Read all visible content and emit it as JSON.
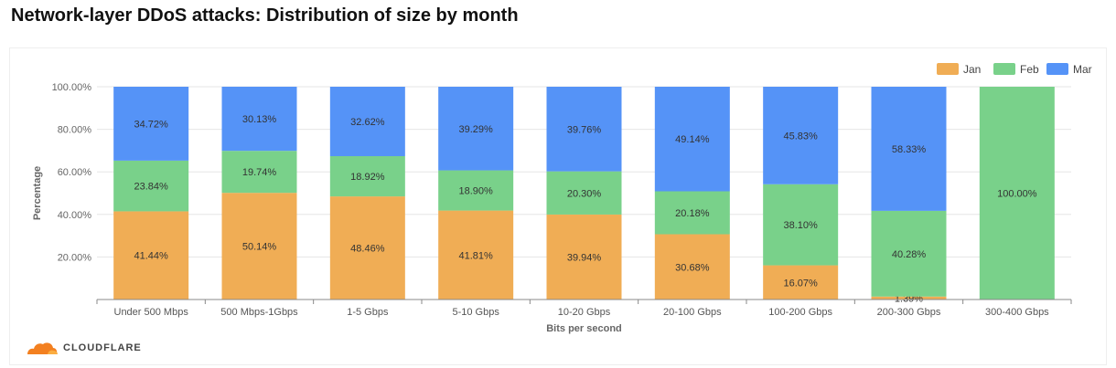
{
  "page": {
    "title": "Network-layer DDoS attacks: Distribution of size by month"
  },
  "brand": {
    "name": "CLOUDFLARE",
    "color": "#f38020"
  },
  "chart_data": {
    "type": "bar",
    "stacked": true,
    "title": "Network-layer DDoS attacks: Distribution of size by month",
    "xlabel": "Bits per second",
    "ylabel": "Percentage",
    "ylim": [
      0,
      100
    ],
    "yticks": [
      20,
      40,
      60,
      80,
      100
    ],
    "ytick_labels": [
      "20.00%",
      "40.00%",
      "60.00%",
      "80.00%",
      "100.00%"
    ],
    "grid": true,
    "legend_position": "top-right",
    "categories": [
      "Under 500 Mbps",
      "500 Mbps-1Gbps",
      "1-5 Gbps",
      "5-10 Gbps",
      "10-20 Gbps",
      "20-100 Gbps",
      "100-200 Gbps",
      "200-300 Gbps",
      "300-400 Gbps"
    ],
    "series": [
      {
        "name": "Jan",
        "color": "#f0ad55",
        "values": [
          41.44,
          50.14,
          48.46,
          41.81,
          39.94,
          30.68,
          16.07,
          1.39,
          0
        ],
        "labels": [
          "41.44%",
          "50.14%",
          "48.46%",
          "41.81%",
          "39.94%",
          "30.68%",
          "16.07%",
          "1.39%",
          ""
        ]
      },
      {
        "name": "Feb",
        "color": "#79d18a",
        "values": [
          23.84,
          19.74,
          18.92,
          18.9,
          20.3,
          20.18,
          38.1,
          40.28,
          100.0
        ],
        "labels": [
          "23.84%",
          "19.74%",
          "18.92%",
          "18.90%",
          "20.30%",
          "20.18%",
          "38.10%",
          "40.28%",
          "100.00%"
        ]
      },
      {
        "name": "Mar",
        "color": "#5593f7",
        "values": [
          34.72,
          30.13,
          32.62,
          39.29,
          39.76,
          49.14,
          45.83,
          58.33,
          0
        ],
        "labels": [
          "34.72%",
          "30.13%",
          "32.62%",
          "39.29%",
          "39.76%",
          "49.14%",
          "45.83%",
          "58.33%",
          ""
        ]
      }
    ]
  }
}
